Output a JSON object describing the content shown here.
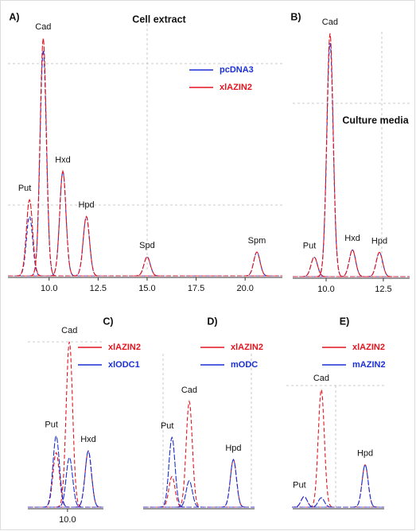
{
  "chart_data": [
    {
      "type": "chromatogram",
      "panel": "A)",
      "title": "Cell extract",
      "categories": [
        "Put",
        "Cad",
        "Hxd",
        "Hpd",
        "Spd",
        "Spm"
      ],
      "x": [
        9.0,
        9.7,
        10.7,
        11.9,
        15.0,
        20.6
      ],
      "xlim": [
        7.9,
        21.9
      ],
      "xticks": [
        {
          "value": 10,
          "label": "10.0"
        },
        12.5,
        {
          "value": 15,
          "label": "15.0"
        },
        17.5,
        {
          "value": 20,
          "label": "20.0"
        }
      ],
      "ylim": [
        0,
        100
      ],
      "series": [
        {
          "name": "pcDNA3",
          "color": "#1a2fd6",
          "values": [
            25,
            95,
            44,
            25,
            8,
            10
          ]
        },
        {
          "name": "xlAZIN2",
          "color": "#e3141e",
          "values": [
            32,
            100,
            44,
            25,
            8,
            10
          ]
        }
      ]
    },
    {
      "type": "chromatogram",
      "panel": "B)",
      "title": "Culture media",
      "categories": [
        "Put",
        "Cad",
        "Hxd",
        "Hpd"
      ],
      "x": [
        9.48,
        10.17,
        11.15,
        12.33
      ],
      "xlim": [
        8.54,
        13.65
      ],
      "xticks": [
        {
          "value": 10,
          "label": "10.0"
        },
        12.5
      ],
      "ylim": [
        0,
        100
      ],
      "series": [
        {
          "color": "#1a2fd6",
          "values": [
            8,
            96,
            11,
            10
          ]
        },
        {
          "color": "#e3141e",
          "values": [
            8,
            100,
            11,
            10
          ]
        }
      ]
    },
    {
      "type": "chromatogram",
      "panel": "C)",
      "categories": [
        "Put",
        "Cad",
        "Hxd"
      ],
      "x": [
        9.4,
        10.1,
        11.1
      ],
      "xlim": [
        7.9,
        11.9
      ],
      "xticks": [
        {
          "value": 10,
          "label": "10.0"
        }
      ],
      "ylim": [
        0,
        100
      ],
      "series": [
        {
          "name": "xlAZIN2",
          "color": "#e3141e",
          "values": [
            33,
            100,
            34
          ]
        },
        {
          "name": "xlODC1",
          "color": "#1a2fd6",
          "values": [
            43,
            30,
            34
          ]
        }
      ]
    },
    {
      "type": "chromatogram",
      "panel": "D)",
      "categories": [
        "Put",
        "Cad",
        "Hpd"
      ],
      "x": [
        9.5,
        10.4,
        12.7
      ],
      "xlim": [
        8,
        13.8
      ],
      "ylim": [
        0,
        100
      ],
      "series": [
        {
          "name": "xlAZIN2",
          "color": "#e3141e",
          "values": [
            29,
            100,
            45
          ]
        },
        {
          "name": "mODC",
          "color": "#1a2fd6",
          "values": [
            66,
            25,
            45
          ]
        }
      ]
    },
    {
      "type": "chromatogram",
      "panel": "E)",
      "categories": [
        "Put",
        "Cad",
        "Hpd"
      ],
      "x": [
        8.6,
        9.5,
        11.8
      ],
      "xlim": [
        8,
        12.8
      ],
      "ylim": [
        0,
        100
      ],
      "series": [
        {
          "name": "xlAZIN2",
          "color": "#e3141e",
          "values": [
            9,
            100,
            36
          ]
        },
        {
          "name": "mAZIN2",
          "color": "#1a2fd6",
          "values": [
            9,
            8,
            36
          ]
        }
      ]
    }
  ]
}
